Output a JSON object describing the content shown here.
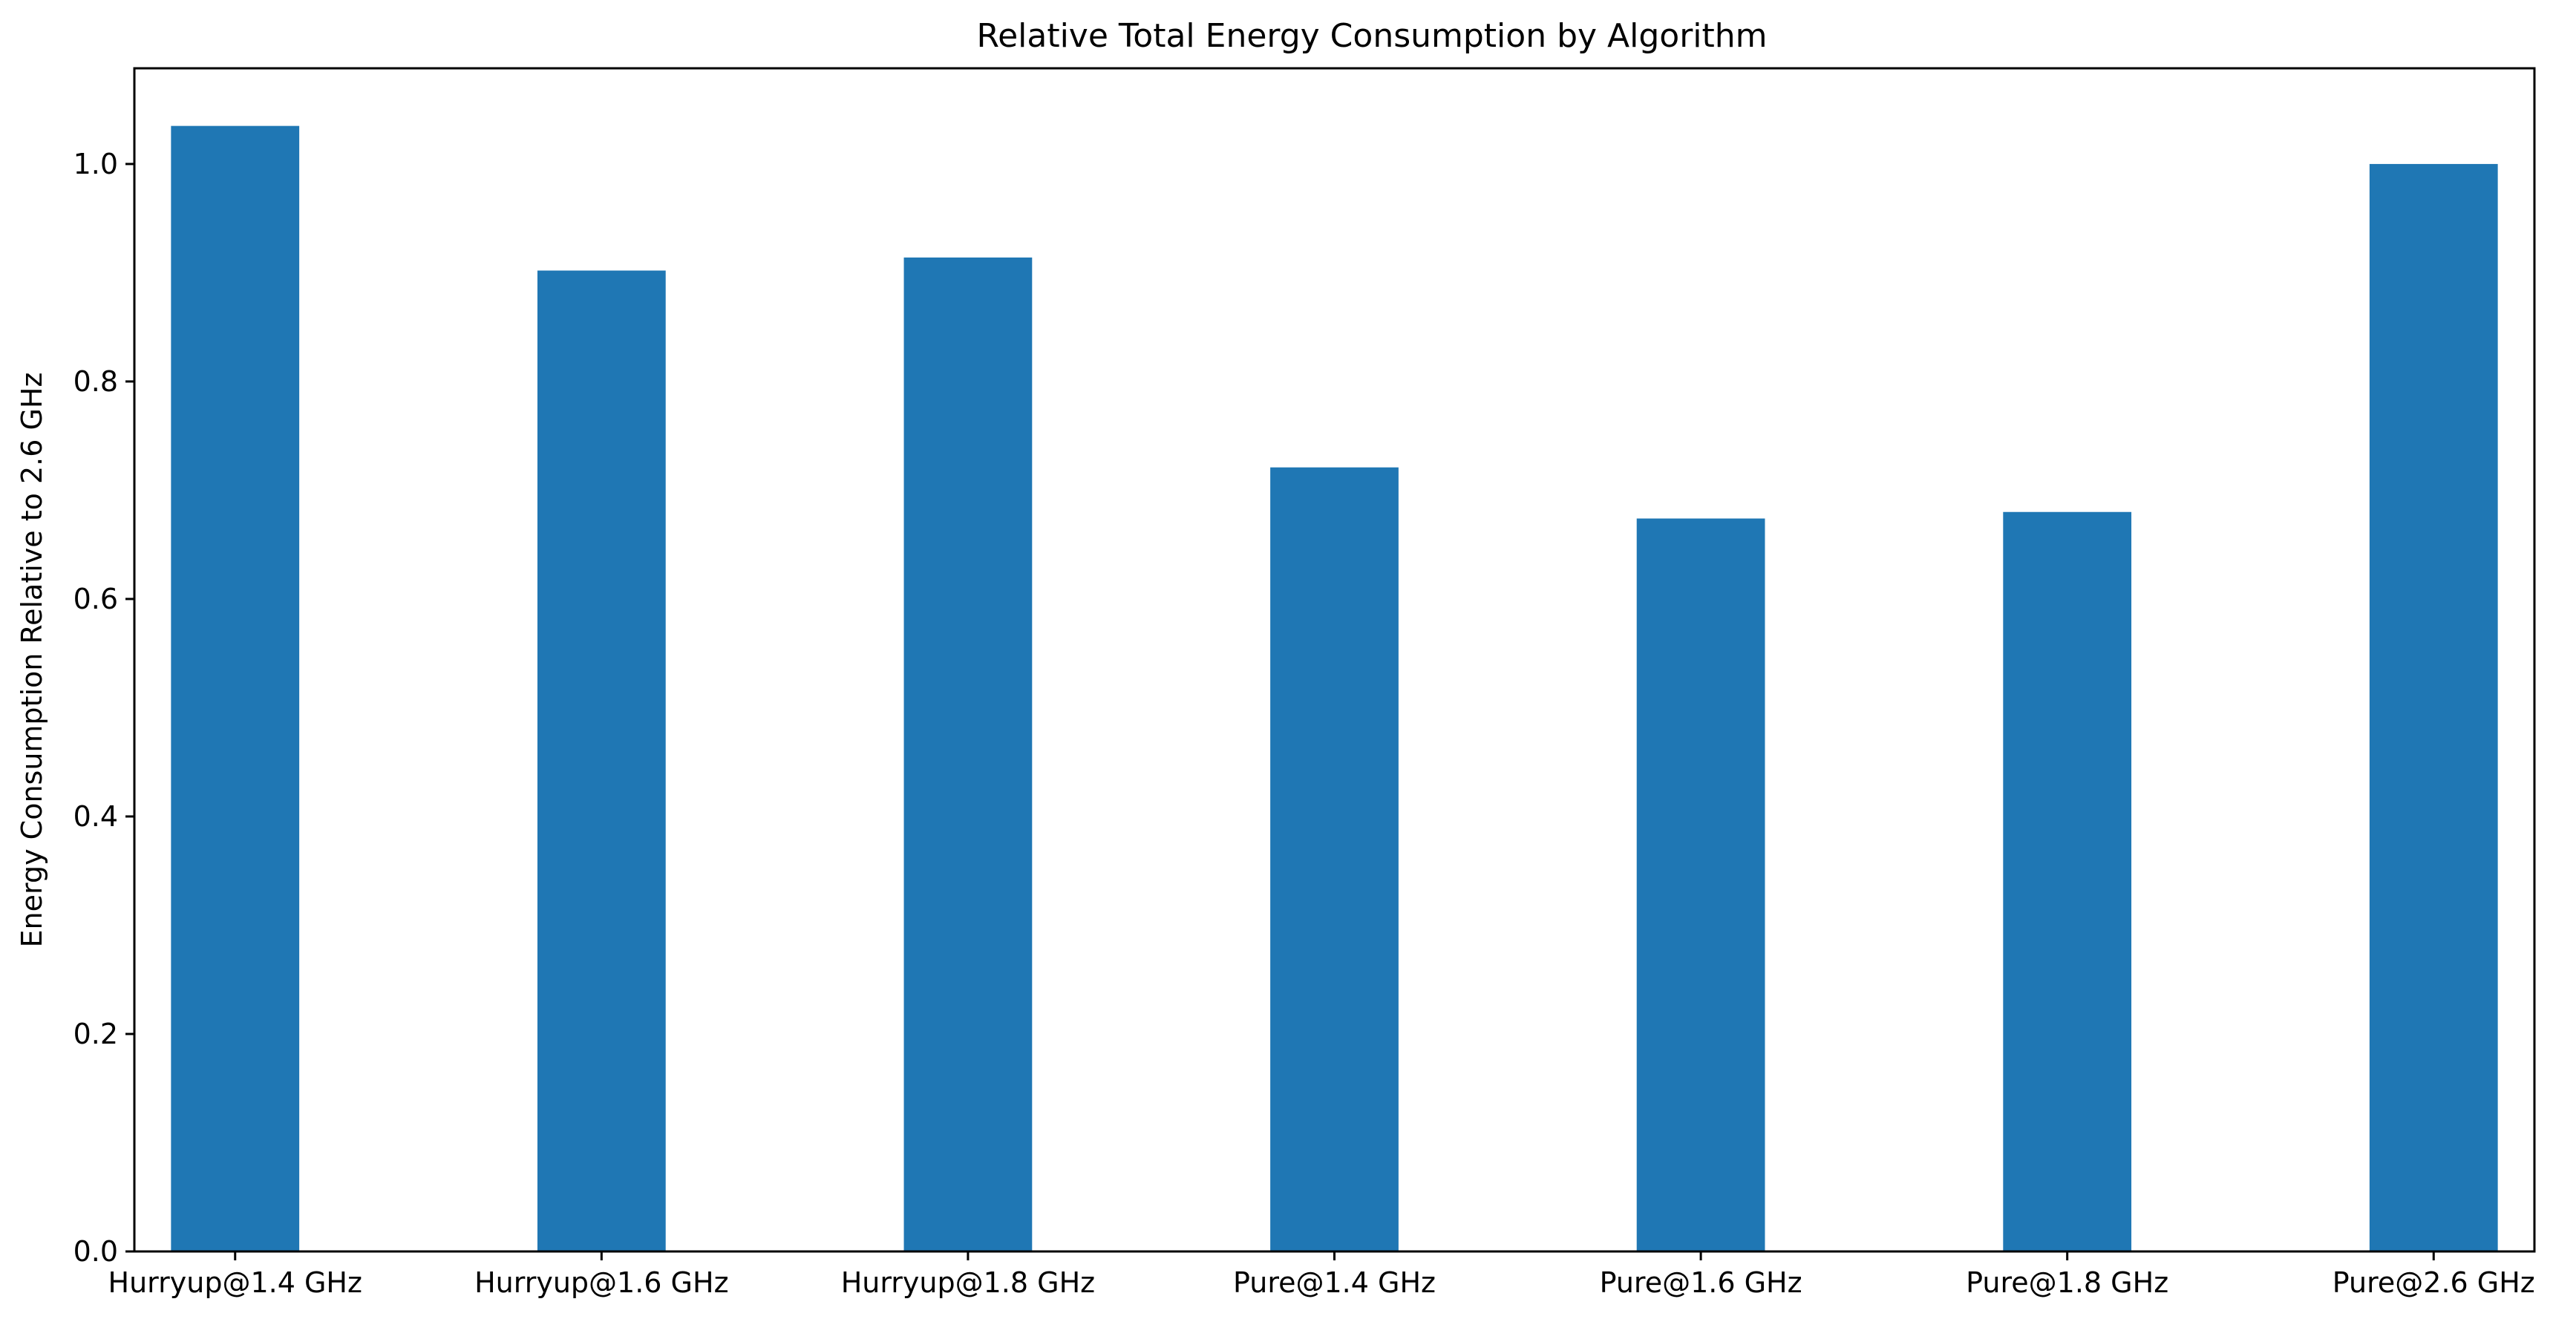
{
  "chart_data": {
    "type": "bar",
    "title": "Relative Total Energy Consumption by Algorithm",
    "xlabel": "",
    "ylabel": "Energy Consumption Relative to 2.6 GHz",
    "categories": [
      "Hurryup@1.4 GHz",
      "Hurryup@1.6 GHz",
      "Hurryup@1.8 GHz",
      "Pure@1.4 GHz",
      "Pure@1.6 GHz",
      "Pure@1.8 GHz",
      "Pure@2.6 GHz"
    ],
    "values": [
      1.035,
      0.902,
      0.914,
      0.721,
      0.674,
      0.68,
      1.0
    ],
    "ylim": [
      0,
      1.088
    ],
    "yticks": [
      0.0,
      0.2,
      0.4,
      0.6,
      0.8,
      1.0
    ],
    "ytick_labels": [
      "0.0",
      "0.2",
      "0.4",
      "0.6",
      "0.8",
      "1.0"
    ],
    "bar_color": "#1f77b4",
    "grid": false,
    "legend": "none"
  }
}
